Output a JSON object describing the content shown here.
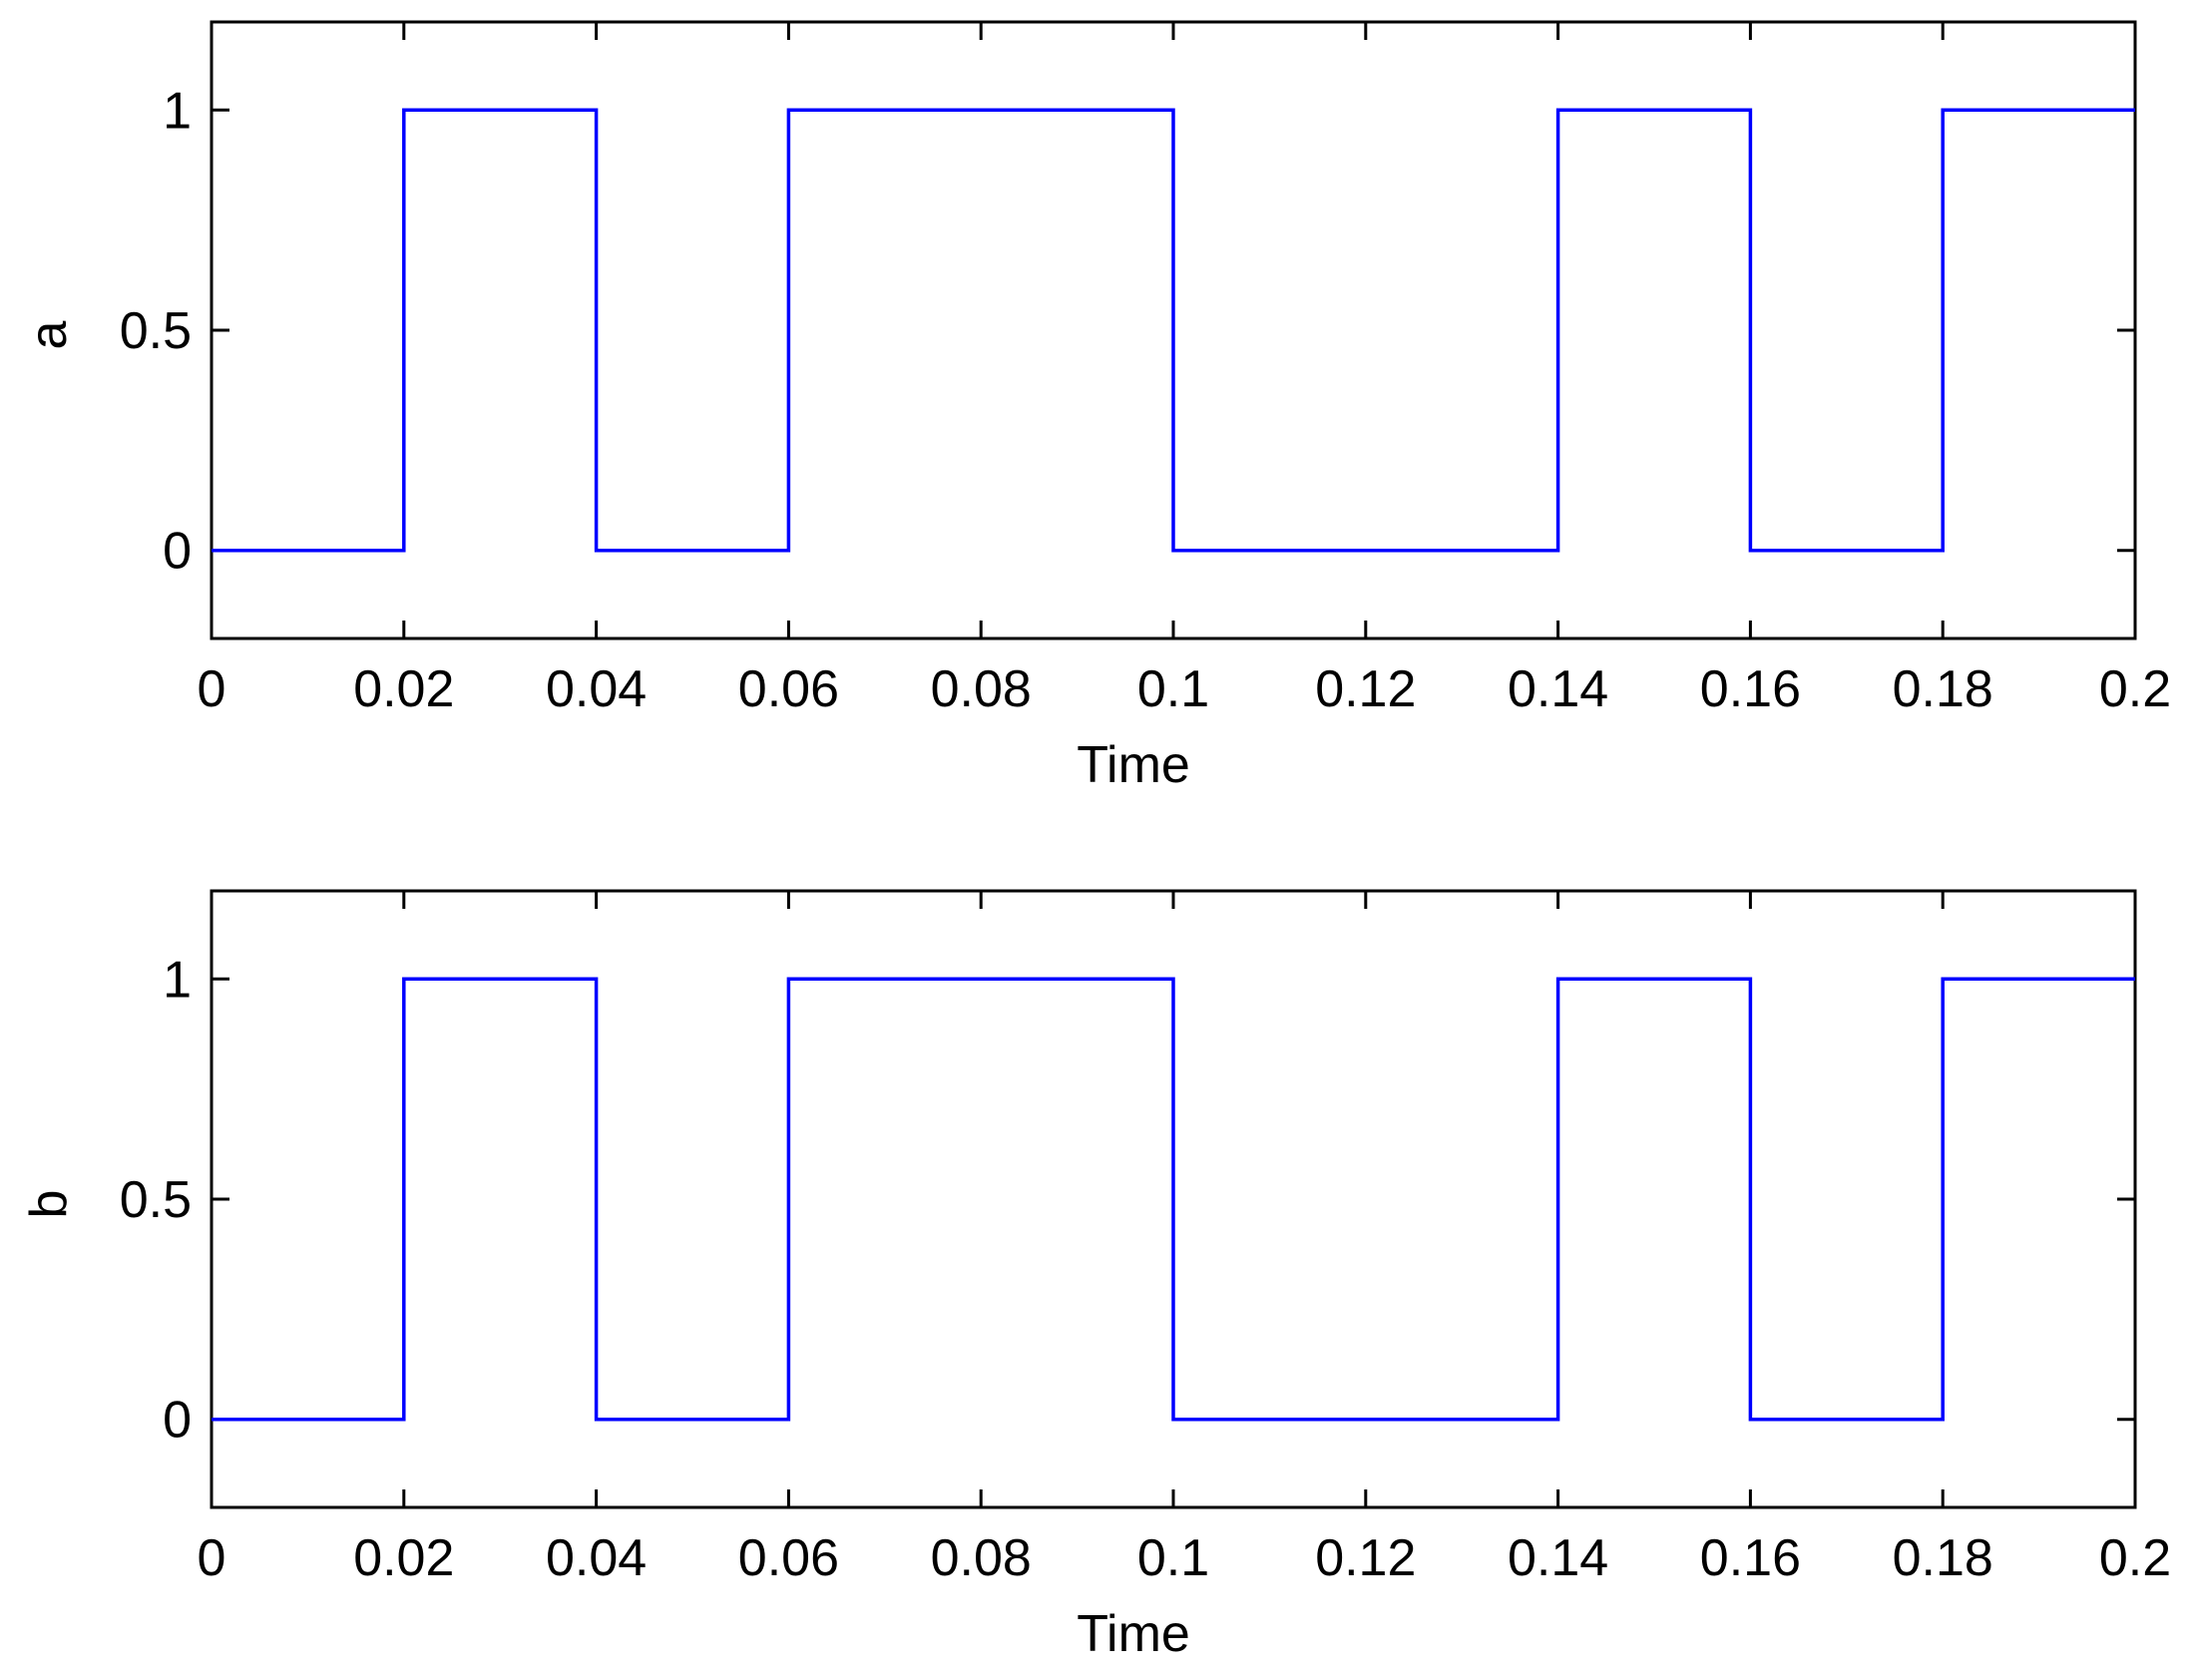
{
  "chart_data": [
    {
      "type": "line",
      "step": true,
      "title": "",
      "xlabel": "Time",
      "ylabel": "a",
      "xlim": [
        0,
        0.2
      ],
      "ylim": [
        -0.2,
        1.2
      ],
      "xticks": [
        0,
        0.02,
        0.04,
        0.06,
        0.08,
        0.1,
        0.12,
        0.14,
        0.16,
        0.18,
        0.2
      ],
      "xtick_labels": [
        "0",
        "0.02",
        "0.04",
        "0.06",
        "0.08",
        "0.1",
        "0.12",
        "0.14",
        "0.16",
        "0.18",
        "0.2"
      ],
      "yticks": [
        0,
        0.5,
        1
      ],
      "ytick_labels": [
        "0",
        "0.5",
        "1"
      ],
      "grid": false,
      "line_color": "#0000ff",
      "series": [
        {
          "x": [
            0,
            0.02,
            0.02,
            0.04,
            0.04,
            0.06,
            0.06,
            0.1,
            0.1,
            0.14,
            0.14,
            0.16,
            0.16,
            0.18,
            0.18,
            0.2
          ],
          "y": [
            0,
            0,
            1,
            1,
            0,
            0,
            1,
            1,
            0,
            0,
            1,
            1,
            0,
            0,
            1,
            1
          ]
        }
      ]
    },
    {
      "type": "line",
      "step": true,
      "title": "",
      "xlabel": "Time",
      "ylabel": "b",
      "xlim": [
        0,
        0.2
      ],
      "ylim": [
        -0.2,
        1.2
      ],
      "xticks": [
        0,
        0.02,
        0.04,
        0.06,
        0.08,
        0.1,
        0.12,
        0.14,
        0.16,
        0.18,
        0.2
      ],
      "xtick_labels": [
        "0",
        "0.02",
        "0.04",
        "0.06",
        "0.08",
        "0.1",
        "0.12",
        "0.14",
        "0.16",
        "0.18",
        "0.2"
      ],
      "yticks": [
        0,
        0.5,
        1
      ],
      "ytick_labels": [
        "0",
        "0.5",
        "1"
      ],
      "grid": false,
      "line_color": "#0000ff",
      "series": [
        {
          "x": [
            0,
            0.02,
            0.02,
            0.04,
            0.04,
            0.06,
            0.06,
            0.1,
            0.1,
            0.14,
            0.14,
            0.16,
            0.16,
            0.18,
            0.18,
            0.2
          ],
          "y": [
            0,
            0,
            1,
            1,
            0,
            0,
            1,
            1,
            0,
            0,
            1,
            1,
            0,
            0,
            1,
            1
          ]
        }
      ]
    }
  ]
}
